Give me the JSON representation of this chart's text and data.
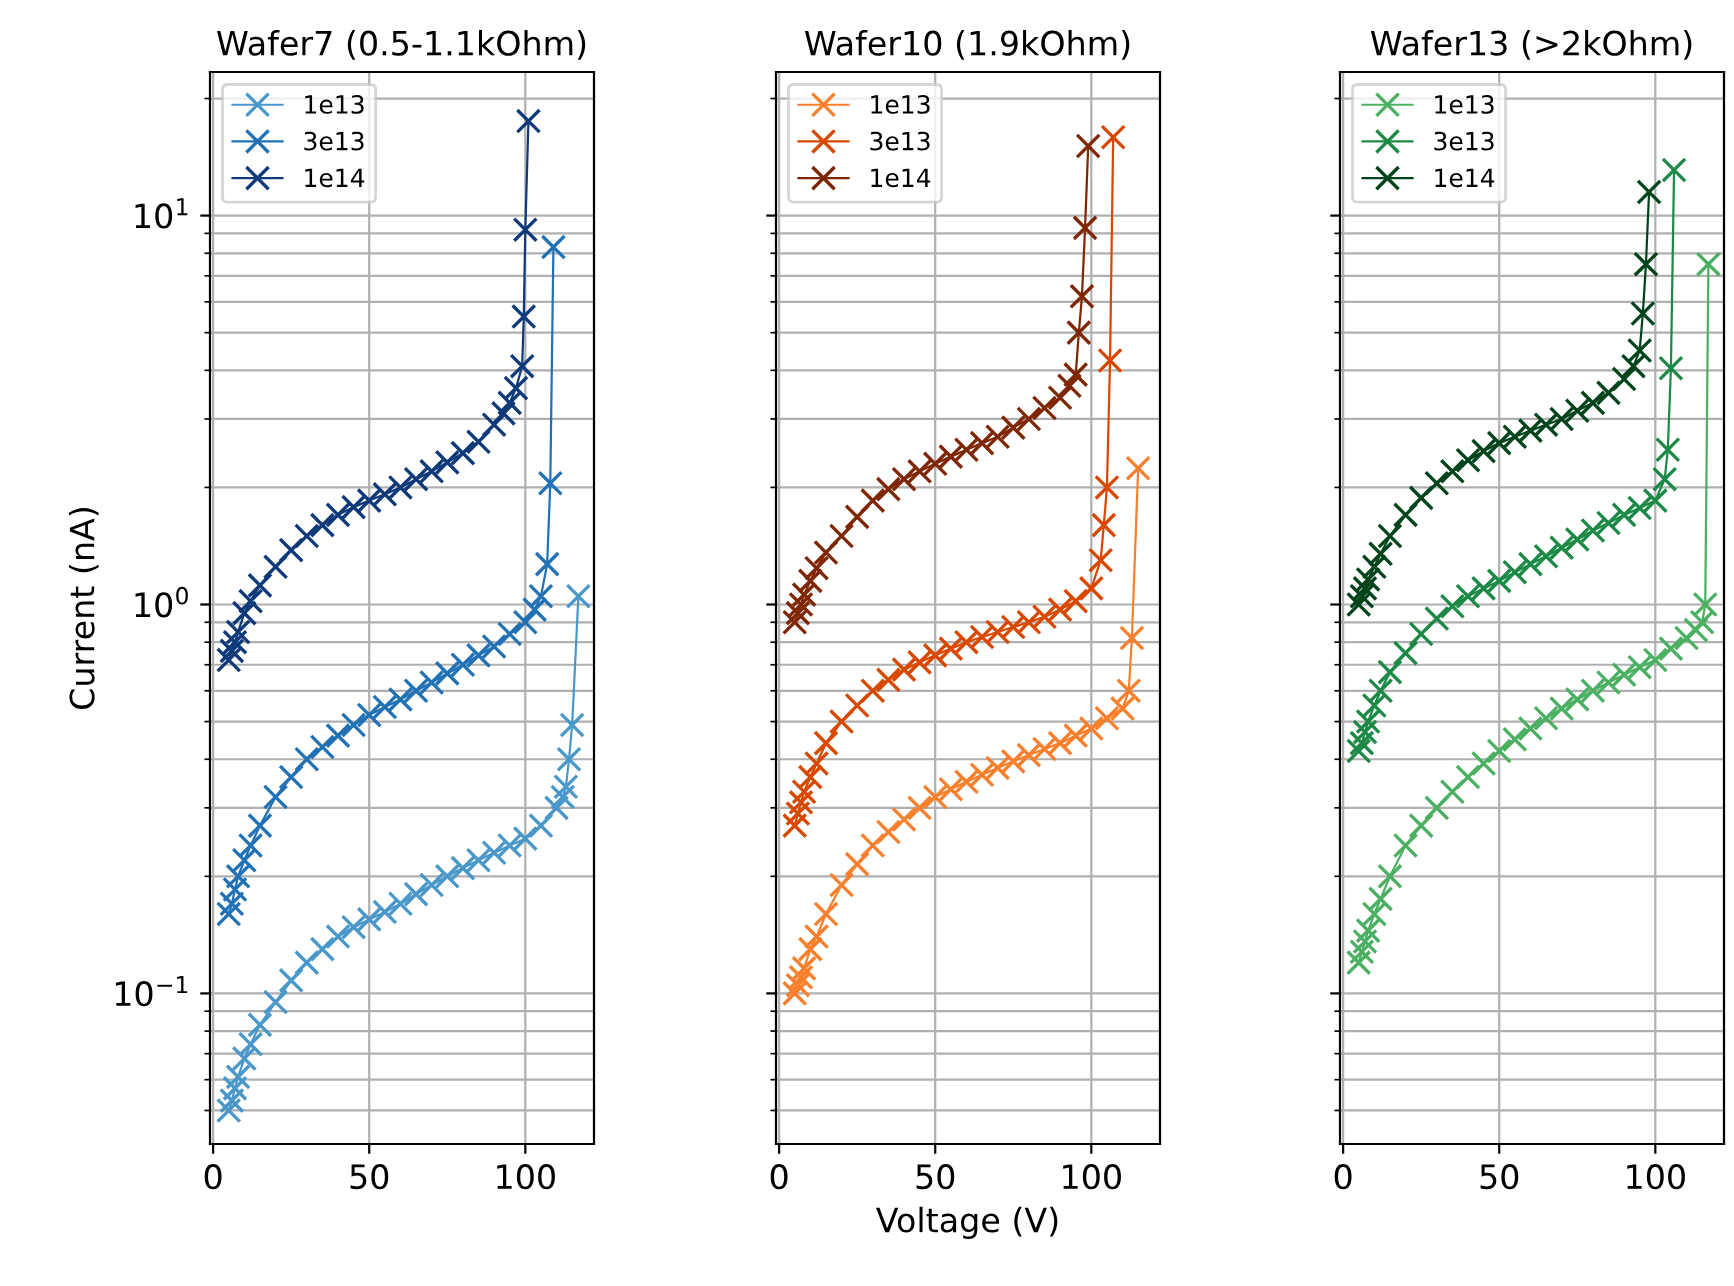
{
  "chart_data": [
    {
      "type": "line",
      "title": "Wafer7 (0.5-1.1kOhm)",
      "ylabel": "Current (nA)",
      "log": "y",
      "grid": true,
      "legend": "top left",
      "marker": "cross",
      "line_style": "solid",
      "xlim": [
        -1,
        122
      ],
      "xticks": [
        0,
        50,
        100
      ],
      "ylim": [
        0.041,
        23.4
      ],
      "yticks": [
        {
          "value": 0.1,
          "label": "10$^{−1}$"
        },
        {
          "value": 1,
          "label": "10$^{0}$"
        },
        {
          "value": 10,
          "label": "10$^{1}$"
        }
      ],
      "series": [
        {
          "name": "1e13",
          "color": "#4a98c9",
          "x": [
            5,
            6,
            7,
            8,
            10,
            12,
            15,
            20,
            25,
            30,
            35,
            40,
            45,
            50,
            55,
            60,
            65,
            70,
            75,
            80,
            85,
            90,
            95,
            100,
            105,
            110,
            112,
            113,
            114,
            115,
            117
          ],
          "values": [
            0.05,
            0.053,
            0.057,
            0.061,
            0.068,
            0.074,
            0.083,
            0.095,
            0.108,
            0.12,
            0.13,
            0.14,
            0.148,
            0.155,
            0.162,
            0.17,
            0.18,
            0.19,
            0.2,
            0.21,
            0.22,
            0.23,
            0.24,
            0.25,
            0.27,
            0.3,
            0.32,
            0.34,
            0.4,
            0.49,
            1.05
          ]
        },
        {
          "name": "3e13",
          "color": "#2171b5",
          "x": [
            5,
            6,
            7,
            8,
            10,
            12,
            15,
            20,
            25,
            30,
            35,
            40,
            45,
            50,
            55,
            60,
            65,
            70,
            75,
            80,
            85,
            90,
            95,
            100,
            103,
            105,
            107,
            108,
            109
          ],
          "values": [
            0.16,
            0.17,
            0.185,
            0.2,
            0.22,
            0.24,
            0.27,
            0.32,
            0.36,
            0.4,
            0.43,
            0.46,
            0.49,
            0.52,
            0.545,
            0.57,
            0.6,
            0.63,
            0.665,
            0.7,
            0.74,
            0.78,
            0.84,
            0.9,
            0.97,
            1.05,
            1.27,
            2.05,
            8.3
          ]
        },
        {
          "name": "1e14",
          "color": "#0e3a7a",
          "x": [
            5,
            6,
            7,
            8,
            10,
            12,
            15,
            20,
            25,
            30,
            35,
            40,
            45,
            50,
            55,
            60,
            65,
            70,
            75,
            80,
            85,
            90,
            93,
            95,
            97,
            99,
            99.5,
            100,
            101
          ],
          "values": [
            0.72,
            0.76,
            0.8,
            0.85,
            0.95,
            1.02,
            1.12,
            1.25,
            1.38,
            1.5,
            1.6,
            1.7,
            1.78,
            1.85,
            1.92,
            2.0,
            2.1,
            2.2,
            2.32,
            2.45,
            2.62,
            2.9,
            3.1,
            3.3,
            3.6,
            4.1,
            5.5,
            9.2,
            17.5
          ]
        }
      ]
    },
    {
      "type": "line",
      "title": "Wafer10 (1.9kOhm)",
      "xlabel": "Voltage (V)",
      "log": "y",
      "grid": true,
      "legend": "top left",
      "marker": "cross",
      "line_style": "solid",
      "tick_labels": "x",
      "xlim": [
        -1,
        122
      ],
      "xticks": [
        0,
        50,
        100
      ],
      "ylim": [
        0.041,
        23.4
      ],
      "yticks": [
        {
          "value": 0.1,
          "label": null
        },
        {
          "value": 1,
          "label": null
        },
        {
          "value": 10,
          "label": null
        }
      ],
      "series": [
        {
          "name": "1e13",
          "color": "#f87f2c",
          "x": [
            5,
            6,
            7,
            8,
            10,
            12,
            15,
            20,
            25,
            30,
            35,
            40,
            45,
            50,
            55,
            60,
            65,
            70,
            75,
            80,
            85,
            90,
            95,
            100,
            105,
            110,
            112,
            113,
            115
          ],
          "values": [
            0.1,
            0.105,
            0.11,
            0.116,
            0.13,
            0.14,
            0.16,
            0.19,
            0.215,
            0.24,
            0.26,
            0.28,
            0.3,
            0.32,
            0.335,
            0.35,
            0.365,
            0.38,
            0.395,
            0.41,
            0.425,
            0.44,
            0.46,
            0.48,
            0.51,
            0.54,
            0.6,
            0.82,
            2.24
          ]
        },
        {
          "name": "3e13",
          "color": "#d84801",
          "x": [
            5,
            6,
            7,
            8,
            10,
            12,
            15,
            20,
            25,
            30,
            35,
            40,
            45,
            50,
            55,
            60,
            65,
            70,
            75,
            80,
            85,
            90,
            95,
            100,
            103,
            104,
            105,
            106,
            107
          ],
          "values": [
            0.27,
            0.29,
            0.31,
            0.33,
            0.36,
            0.39,
            0.44,
            0.5,
            0.55,
            0.6,
            0.64,
            0.68,
            0.71,
            0.74,
            0.77,
            0.8,
            0.825,
            0.85,
            0.875,
            0.9,
            0.93,
            0.97,
            1.02,
            1.1,
            1.3,
            1.6,
            2.0,
            4.24,
            15.9
          ]
        },
        {
          "name": "1e14",
          "color": "#7f2704",
          "x": [
            5,
            6,
            7,
            8,
            10,
            12,
            15,
            20,
            25,
            30,
            35,
            40,
            45,
            50,
            55,
            60,
            65,
            70,
            75,
            80,
            85,
            90,
            93,
            95,
            96,
            97,
            98,
            99
          ],
          "values": [
            0.9,
            0.95,
            1.0,
            1.06,
            1.15,
            1.24,
            1.36,
            1.5,
            1.68,
            1.85,
            1.98,
            2.1,
            2.2,
            2.3,
            2.4,
            2.5,
            2.6,
            2.7,
            2.85,
            3.0,
            3.2,
            3.4,
            3.65,
            3.9,
            5.0,
            6.2,
            9.3,
            15.1
          ]
        }
      ]
    },
    {
      "type": "line",
      "title": "Wafer13 (>2kOhm)",
      "log": "y",
      "grid": true,
      "legend": "top left",
      "marker": "cross",
      "line_style": "solid",
      "tick_labels": "x",
      "xlim": [
        -1,
        122
      ],
      "xticks": [
        0,
        50,
        100
      ],
      "ylim": [
        0.041,
        23.4
      ],
      "yticks": [
        {
          "value": 0.1,
          "label": null
        },
        {
          "value": 1,
          "label": null
        },
        {
          "value": 10,
          "label": null
        }
      ],
      "series": [
        {
          "name": "1e13",
          "color": "#4bb062",
          "x": [
            5,
            6,
            7,
            8,
            10,
            12,
            15,
            20,
            25,
            30,
            35,
            40,
            45,
            50,
            55,
            60,
            65,
            70,
            75,
            80,
            85,
            90,
            95,
            100,
            105,
            110,
            113,
            115,
            116,
            117
          ],
          "values": [
            0.12,
            0.128,
            0.136,
            0.145,
            0.16,
            0.175,
            0.2,
            0.24,
            0.27,
            0.3,
            0.33,
            0.36,
            0.39,
            0.42,
            0.45,
            0.48,
            0.51,
            0.54,
            0.57,
            0.6,
            0.63,
            0.66,
            0.69,
            0.72,
            0.77,
            0.82,
            0.86,
            0.9,
            1.0,
            7.5
          ]
        },
        {
          "name": "3e13",
          "color": "#1c8a46",
          "x": [
            5,
            6,
            7,
            8,
            10,
            12,
            15,
            20,
            25,
            30,
            35,
            40,
            45,
            50,
            55,
            60,
            65,
            70,
            75,
            80,
            85,
            90,
            95,
            100,
            103,
            104,
            105,
            106
          ],
          "values": [
            0.42,
            0.44,
            0.47,
            0.5,
            0.55,
            0.6,
            0.67,
            0.75,
            0.84,
            0.92,
            0.99,
            1.05,
            1.1,
            1.15,
            1.21,
            1.27,
            1.33,
            1.4,
            1.47,
            1.55,
            1.62,
            1.7,
            1.77,
            1.85,
            2.1,
            2.5,
            4.05,
            13.1
          ]
        },
        {
          "name": "1e14",
          "color": "#00441b",
          "x": [
            5,
            6,
            7,
            8,
            10,
            12,
            15,
            20,
            25,
            30,
            35,
            40,
            45,
            50,
            55,
            60,
            65,
            70,
            75,
            80,
            85,
            90,
            93,
            95,
            96,
            97,
            98
          ],
          "values": [
            1.0,
            1.05,
            1.1,
            1.16,
            1.25,
            1.35,
            1.5,
            1.7,
            1.88,
            2.05,
            2.2,
            2.35,
            2.48,
            2.6,
            2.7,
            2.8,
            2.9,
            3.0,
            3.15,
            3.3,
            3.5,
            3.8,
            4.1,
            4.5,
            5.6,
            7.5,
            11.5
          ]
        }
      ]
    }
  ]
}
